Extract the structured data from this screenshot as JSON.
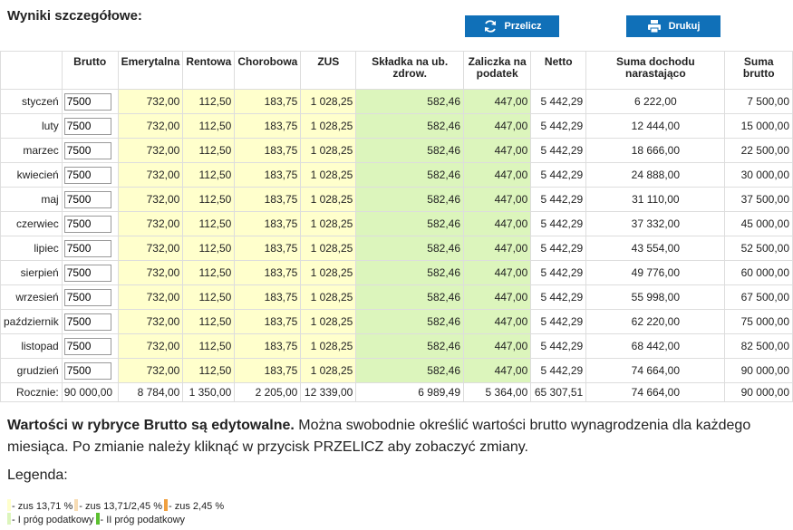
{
  "header": {
    "title": "Wyniki szczegółowe:"
  },
  "buttons": [
    "Przelicz",
    "Drukuj"
  ],
  "table": {
    "columns": [
      "Brutto",
      "Emerytalna",
      "Rentowa",
      "Chorobowa",
      "ZUS",
      "Składka na ub. zdrow.",
      "Zaliczka na podatek",
      "Netto",
      "Suma dochodu narastająco",
      "Suma brutto"
    ],
    "rows": [
      [
        "styczeń",
        "7500",
        "732,00",
        "112,50",
        "183,75",
        "1 028,25",
        "582,46",
        "447,00",
        "5 442,29",
        "6 222,00",
        "7 500,00"
      ],
      [
        "luty",
        "7500",
        "732,00",
        "112,50",
        "183,75",
        "1 028,25",
        "582,46",
        "447,00",
        "5 442,29",
        "12 444,00",
        "15 000,00"
      ],
      [
        "marzec",
        "7500",
        "732,00",
        "112,50",
        "183,75",
        "1 028,25",
        "582,46",
        "447,00",
        "5 442,29",
        "18 666,00",
        "22 500,00"
      ],
      [
        "kwiecień",
        "7500",
        "732,00",
        "112,50",
        "183,75",
        "1 028,25",
        "582,46",
        "447,00",
        "5 442,29",
        "24 888,00",
        "30 000,00"
      ],
      [
        "maj",
        "7500",
        "732,00",
        "112,50",
        "183,75",
        "1 028,25",
        "582,46",
        "447,00",
        "5 442,29",
        "31 110,00",
        "37 500,00"
      ],
      [
        "czerwiec",
        "7500",
        "732,00",
        "112,50",
        "183,75",
        "1 028,25",
        "582,46",
        "447,00",
        "5 442,29",
        "37 332,00",
        "45 000,00"
      ],
      [
        "lipiec",
        "7500",
        "732,00",
        "112,50",
        "183,75",
        "1 028,25",
        "582,46",
        "447,00",
        "5 442,29",
        "43 554,00",
        "52 500,00"
      ],
      [
        "sierpień",
        "7500",
        "732,00",
        "112,50",
        "183,75",
        "1 028,25",
        "582,46",
        "447,00",
        "5 442,29",
        "49 776,00",
        "60 000,00"
      ],
      [
        "wrzesień",
        "7500",
        "732,00",
        "112,50",
        "183,75",
        "1 028,25",
        "582,46",
        "447,00",
        "5 442,29",
        "55 998,00",
        "67 500,00"
      ],
      [
        "październik",
        "7500",
        "732,00",
        "112,50",
        "183,75",
        "1 028,25",
        "582,46",
        "447,00",
        "5 442,29",
        "62 220,00",
        "75 000,00"
      ],
      [
        "listopad",
        "7500",
        "732,00",
        "112,50",
        "183,75",
        "1 028,25",
        "582,46",
        "447,00",
        "5 442,29",
        "68 442,00",
        "82 500,00"
      ],
      [
        "grudzień",
        "7500",
        "732,00",
        "112,50",
        "183,75",
        "1 028,25",
        "582,46",
        "447,00",
        "5 442,29",
        "74 664,00",
        "90 000,00"
      ]
    ],
    "total": [
      "Rocznie:",
      "90 000,00",
      "8 784,00",
      "1 350,00",
      "2 205,00",
      "12 339,00",
      "6 989,49",
      "5 364,00",
      "65 307,51",
      "74 664,00",
      "90 000,00"
    ]
  },
  "note": {
    "bold": "Wartości w rybrycе Brutto są edytowalne.",
    "text": "Można swobodnie określić wartości brutto wynagrodzenia dla każdego miesiąca. Po zmianie należy kliknąć w przycisk PRZELICZ aby zobaczyć zmiany."
  },
  "legend": {
    "title": "Legenda:",
    "items": [
      {
        "label": "- zus 13,71 %",
        "color": "#ffffcc"
      },
      {
        "label": "- zus 13,71/2,45 %",
        "color": "#f7dcb4"
      },
      {
        "label": "- zus 2,45 %",
        "color": "#f0a040"
      },
      {
        "label": "- I próg podatkowy",
        "color": "#dcf5bc"
      },
      {
        "label": "- II próg podatkowy",
        "color": "#5cc030"
      }
    ]
  }
}
